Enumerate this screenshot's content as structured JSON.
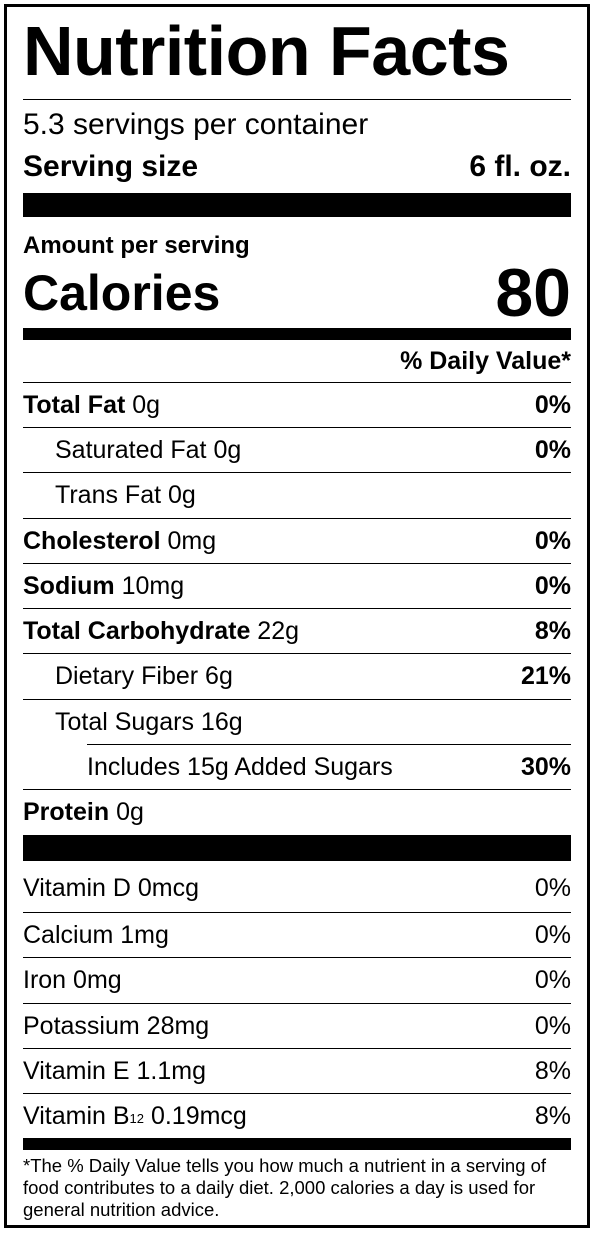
{
  "title": "Nutrition Facts",
  "servings_per_container": "5.3 servings per container",
  "serving_size": {
    "label": "Serving size",
    "value": "6 fl. oz."
  },
  "amount_per_serving": "Amount per serving",
  "calories": {
    "label": "Calories",
    "value": "80"
  },
  "daily_value_header": "% Daily Value*",
  "nutrients": [
    {
      "name": "Total Fat",
      "amount": "0g",
      "dv": "0%"
    },
    {
      "name": "Saturated Fat",
      "amount": "0g",
      "dv": "0%"
    },
    {
      "name": "Trans Fat",
      "amount": "0g",
      "dv": ""
    },
    {
      "name": "Cholesterol",
      "amount": "0mg",
      "dv": "0%"
    },
    {
      "name": "Sodium",
      "amount": "10mg",
      "dv": "0%"
    },
    {
      "name": "Total Carbohydrate",
      "amount": "22g",
      "dv": "8%"
    },
    {
      "name": "Dietary Fiber",
      "amount": "6g",
      "dv": "21%"
    },
    {
      "name": "Total Sugars",
      "amount": "16g",
      "dv": ""
    },
    {
      "name": "Includes 15g Added Sugars",
      "amount": "",
      "dv": "30%"
    },
    {
      "name": "Protein",
      "amount": "0g",
      "dv": ""
    }
  ],
  "vitamins": [
    {
      "name": "Vitamin D",
      "amount": "0mcg",
      "dv": "0%"
    },
    {
      "name": "Calcium",
      "amount": "1mg",
      "dv": "0%"
    },
    {
      "name": "Iron",
      "amount": "0mg",
      "dv": "0%"
    },
    {
      "name": "Potassium",
      "amount": "28mg",
      "dv": "0%"
    },
    {
      "name": "Vitamin E",
      "amount": "1.1mg",
      "dv": "8%"
    },
    {
      "name": "Vitamin B",
      "subscript": "12",
      "amount": "0.19mcg",
      "dv": "8%"
    }
  ],
  "footnote": "*The % Daily Value tells you how much a nutrient in a serving of food contributes to a daily diet. 2,000 calories a day is used for general nutrition advice."
}
